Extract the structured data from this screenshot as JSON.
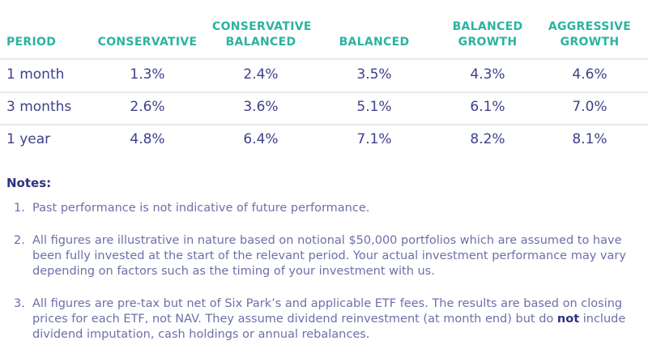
{
  "table": {
    "headers": [
      "PERIOD",
      "CONSERVATIVE",
      "CONSERVATIVE BALANCED",
      "BALANCED",
      "BALANCED GROWTH",
      "AGGRESSIVE GROWTH"
    ],
    "rows": [
      [
        "1 month",
        "1.3%",
        "2.4%",
        "3.5%",
        "4.3%",
        "4.6%"
      ],
      [
        "3 months",
        "2.6%",
        "3.6%",
        "5.1%",
        "6.1%",
        "7.0%"
      ],
      [
        "1 year",
        "4.8%",
        "6.4%",
        "7.1%",
        "8.2%",
        "8.1%"
      ]
    ]
  },
  "notes": {
    "title": "Notes:",
    "items": [
      {
        "num": "1.",
        "text": "Past performance is not indicative of future performance."
      },
      {
        "num": "2.",
        "text": "All figures are illustrative in nature based on notional $50,000 portfolios which are assumed to have been fully invested at the start of the relevant period. Your actual investment performance may vary depending on factors such as the timing of your investment with us."
      },
      {
        "num": "3.",
        "text_a": "All figures are pre-tax but net of Six Park’s and applicable ETF fees. The results are based on closing prices for each ETF, not NAV. They assume dividend reinvestment (at month end) but do ",
        "bold": "not",
        "text_b": " include dividend imputation, cash holdings or annual rebalances."
      }
    ]
  },
  "colors": {
    "header": "#2bb3a0",
    "body_text": "#3d4189",
    "notes_text": "#6c70a8"
  }
}
